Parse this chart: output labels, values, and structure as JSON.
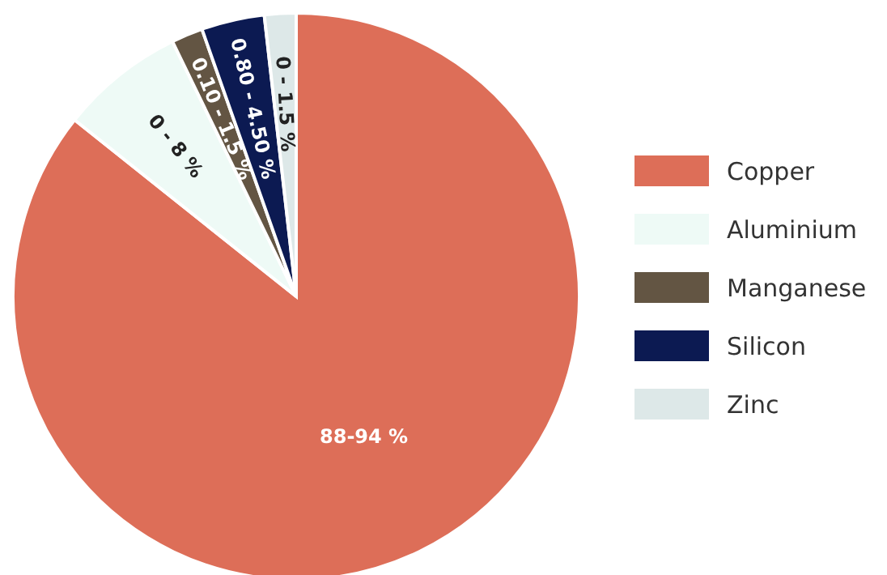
{
  "chart_data": {
    "type": "pie",
    "categories": [
      "Copper",
      "Aluminium",
      "Manganese",
      "Silicon",
      "Zinc"
    ],
    "values": [
      85.7,
      7.1,
      1.8,
      3.6,
      1.8
    ],
    "colors": [
      "#dd6e58",
      "#eefaf6",
      "#635543",
      "#0c1a52",
      "#dde8e8"
    ],
    "annotations": [
      {
        "text": "88-94 %",
        "x": "Copper"
      },
      {
        "text": "0 - 8 %",
        "x": "Aluminium"
      },
      {
        "text": "0.10 - 1.5 %",
        "x": "Manganese"
      },
      {
        "text": "0.80 - 4.50 %",
        "x": "Silicon"
      },
      {
        "text": "0 - 1.5 %",
        "x": "Zinc"
      }
    ],
    "legend": "right"
  }
}
